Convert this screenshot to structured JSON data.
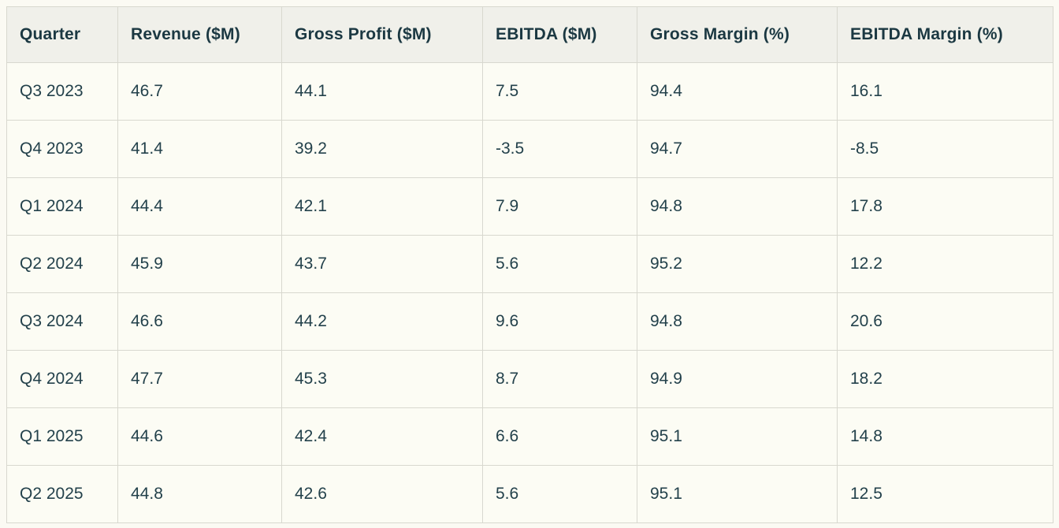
{
  "page": {
    "background_color": "#fbfaf3"
  },
  "table": {
    "header": {
      "columns": [
        "Quarter",
        "Revenue ($M)",
        "Gross Profit ($M)",
        "EBITDA ($M)",
        "Gross Margin (%)",
        "EBITDA Margin (%)"
      ]
    },
    "rows": [
      [
        "Q3 2023",
        "46.7",
        "44.1",
        "7.5",
        "94.4",
        "16.1"
      ],
      [
        "Q4 2023",
        "41.4",
        "39.2",
        "-3.5",
        "94.7",
        "-8.5"
      ],
      [
        "Q1 2024",
        "44.4",
        "42.1",
        "7.9",
        "94.8",
        "17.8"
      ],
      [
        "Q2 2024",
        "45.9",
        "43.7",
        "5.6",
        "95.2",
        "12.2"
      ],
      [
        "Q3 2024",
        "46.6",
        "44.2",
        "9.6",
        "94.8",
        "20.6"
      ],
      [
        "Q4 2024",
        "47.7",
        "45.3",
        "8.7",
        "94.9",
        "18.2"
      ],
      [
        "Q1 2025",
        "44.6",
        "42.4",
        "6.6",
        "95.1",
        "14.8"
      ],
      [
        "Q2 2025",
        "44.8",
        "42.6",
        "5.6",
        "95.1",
        "12.5"
      ]
    ],
    "colors": {
      "header_background": "#f0f0ea",
      "row_background": "#fcfcf4",
      "border": "#d8d8cf",
      "header_text": "#1b3842",
      "cell_text": "#23414b"
    }
  },
  "chart_data": {
    "type": "table",
    "title": "",
    "columns": [
      "Quarter",
      "Revenue ($M)",
      "Gross Profit ($M)",
      "EBITDA ($M)",
      "Gross Margin (%)",
      "EBITDA Margin (%)"
    ],
    "quarters": [
      "Q3 2023",
      "Q4 2023",
      "Q1 2024",
      "Q2 2024",
      "Q3 2024",
      "Q4 2024",
      "Q1 2025",
      "Q2 2025"
    ],
    "series": [
      {
        "name": "Revenue ($M)",
        "values": [
          46.7,
          41.4,
          44.4,
          45.9,
          46.6,
          47.7,
          44.6,
          44.8
        ]
      },
      {
        "name": "Gross Profit ($M)",
        "values": [
          44.1,
          39.2,
          42.1,
          43.7,
          44.2,
          45.3,
          42.4,
          42.6
        ]
      },
      {
        "name": "EBITDA ($M)",
        "values": [
          7.5,
          -3.5,
          7.9,
          5.6,
          9.6,
          8.7,
          6.6,
          5.6
        ]
      },
      {
        "name": "Gross Margin (%)",
        "values": [
          94.4,
          94.7,
          94.8,
          95.2,
          94.8,
          94.9,
          95.1,
          95.1
        ]
      },
      {
        "name": "EBITDA Margin (%)",
        "values": [
          16.1,
          -8.5,
          17.8,
          12.2,
          20.6,
          18.2,
          14.8,
          12.5
        ]
      }
    ]
  }
}
